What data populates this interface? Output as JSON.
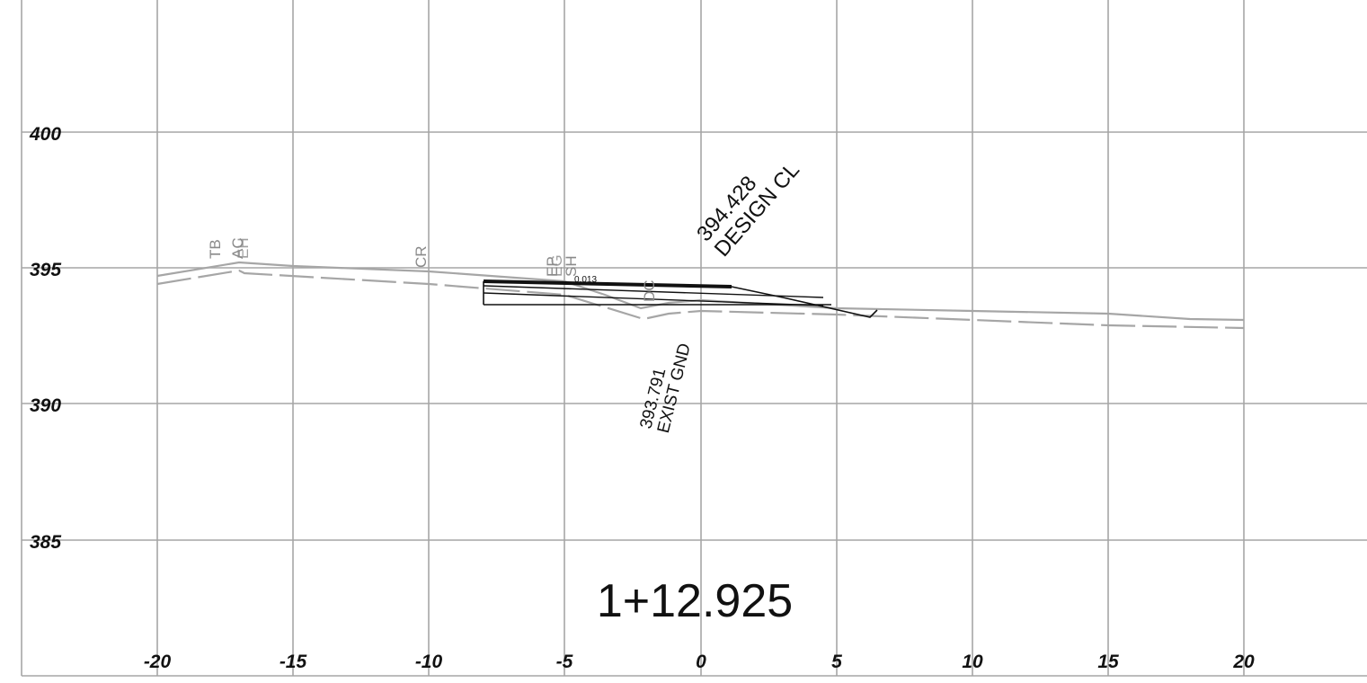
{
  "station_label": "1+12.925",
  "x_ticks": [
    "-20",
    "-15",
    "-10",
    "-5",
    "0",
    "5",
    "10",
    "15",
    "20"
  ],
  "y_ticks": [
    "400",
    "395",
    "390",
    "385"
  ],
  "design_cl": {
    "elevation": "394.428",
    "label": "DESIGN CL"
  },
  "exist_gnd": {
    "elevation": "393.791",
    "label": "EXIST GND"
  },
  "slope_label": "0.013",
  "point_codes": {
    "tb": "TB",
    "ac": "AC",
    "eh": "EH",
    "cr": "CR",
    "ep": "EP",
    "eg": "EG",
    "sh": "SH",
    "dc": "DC"
  },
  "chart_data": {
    "type": "cross-section",
    "x_ticks": [
      -20,
      -15,
      -10,
      -5,
      0,
      5,
      10,
      15,
      20
    ],
    "y_ticks": [
      400,
      395,
      390,
      385
    ],
    "xlim": [
      -25,
      25.5
    ],
    "ylim": [
      380,
      404.8
    ],
    "grid": true,
    "station": "1+12.925",
    "series": [
      {
        "kind": "existing-ground",
        "points": [
          [
            -20,
            394.7
          ],
          [
            -17,
            395.2
          ],
          [
            -15,
            395.05
          ],
          [
            -10,
            394.85
          ],
          [
            -5,
            394.5
          ],
          [
            -3.5,
            394.0
          ],
          [
            -2.2,
            393.5
          ],
          [
            -1.2,
            393.7
          ],
          [
            0,
            393.8
          ],
          [
            5,
            393.5
          ],
          [
            10,
            393.4
          ],
          [
            15,
            393.3
          ],
          [
            18,
            393.1
          ],
          [
            20,
            393.05
          ]
        ]
      },
      {
        "kind": "existing-ground-dashed",
        "points": [
          [
            -20,
            394.4
          ],
          [
            -17,
            394.9
          ],
          [
            -16.8,
            394.8
          ],
          [
            -10,
            394.45
          ],
          [
            -5,
            394.05
          ],
          [
            -2.1,
            393.2
          ],
          [
            -1.2,
            393.4
          ],
          [
            0,
            393.5
          ],
          [
            5,
            393.35
          ],
          [
            10,
            393.15
          ],
          [
            15,
            392.95
          ],
          [
            20,
            392.8
          ]
        ]
      },
      {
        "kind": "design-template",
        "top": [
          [
            -8,
            394.6
          ],
          [
            1.2,
            394.4
          ]
        ],
        "side_slope": [
          [
            1.2,
            394.4
          ],
          [
            3,
            394.0
          ],
          [
            6.2,
            393.2
          ],
          [
            6.5,
            393.45
          ]
        ],
        "layers": [
          [
            -8,
            394.45,
            4.5,
            394.05
          ],
          [
            -8,
            394.2,
            4.5,
            393.75
          ],
          [
            -8,
            393.7,
            4.8,
            393.7
          ]
        ],
        "box_left": [
          -8,
          394.6,
          393.7
        ]
      }
    ]
  },
  "colors": {
    "grid": "#a6a6a6",
    "ground": "#a6a6a6",
    "design": "#111111",
    "text": "#111111"
  }
}
